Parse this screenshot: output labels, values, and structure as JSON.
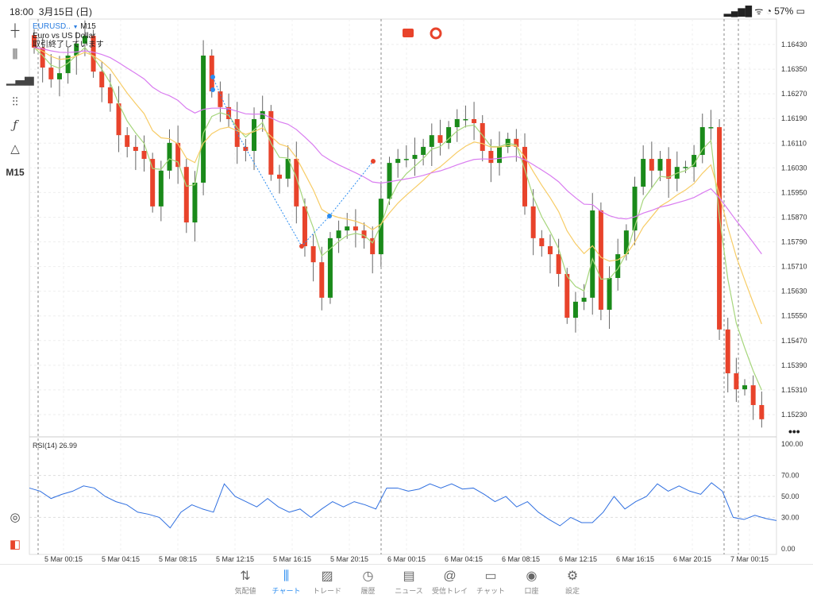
{
  "status_bar": {
    "time": "18:00",
    "date": "3月15日 (日)",
    "battery": "57%"
  },
  "chart_header": {
    "symbol": "EURUSD..",
    "timeframe": "M15",
    "description": "Euro vs US Dollar",
    "market_status": "取引終了しています"
  },
  "left_toolbar": {
    "items": [
      {
        "icon": "crosshair-icon"
      },
      {
        "icon": "candlestick-icon"
      },
      {
        "icon": "indicators-icon"
      },
      {
        "icon": "sliders-icon"
      },
      {
        "icon": "function-icon"
      },
      {
        "icon": "objects-icon"
      }
    ],
    "timeframe_label": "M15"
  },
  "colors": {
    "bull": "#1a8a1a",
    "bear": "#e8432b",
    "ma_fast": "#a6d67c",
    "ma_mid": "#f7cc66",
    "ma_slow": "#d97cf0",
    "rsi": "#2f6fe0",
    "accent": "#2a8cf0"
  },
  "price_axis": [
    "1.16430",
    "1.16350",
    "1.16270",
    "1.16190",
    "1.16110",
    "1.16030",
    "1.15950",
    "1.15870",
    "1.15790",
    "1.15710",
    "1.15630",
    "1.15550",
    "1.15470",
    "1.15390",
    "1.15310",
    "1.15230"
  ],
  "time_axis": [
    "5 Mar 00:15",
    "5 Mar 04:15",
    "5 Mar 08:15",
    "5 Mar 12:15",
    "5 Mar 16:15",
    "5 Mar 20:15",
    "6 Mar 00:15",
    "6 Mar 04:15",
    "6 Mar 08:15",
    "6 Mar 12:15",
    "6 Mar 16:15",
    "6 Mar 20:15",
    "7 Mar 00:15"
  ],
  "closes": [
    1.1642,
    1.16355,
    1.16317,
    1.16337,
    1.16394,
    1.16433,
    1.16458,
    1.16342,
    1.16291,
    1.16239,
    1.16136,
    1.16098,
    1.16085,
    1.16059,
    1.15905,
    1.16021,
    1.16111,
    1.16033,
    1.15853,
    1.15982,
    1.16394,
    1.16278,
    1.16227,
    1.16188,
    1.16098,
    1.16085,
    1.16188,
    1.16214,
    1.16008,
    1.15995,
    1.16059,
    1.15905,
    1.15776,
    1.15724,
    1.15609,
    1.15802,
    1.15827,
    1.1584,
    1.15827,
    1.15802,
    1.1575,
    1.1593,
    1.16046,
    1.16059,
    1.16059,
    1.16072,
    1.16098,
    1.16136,
    1.16111,
    1.16162,
    1.16188,
    1.16188,
    1.16175,
    1.16085,
    1.16046,
    1.16098,
    1.16124,
    1.16098,
    1.15905,
    1.15802,
    1.15776,
    1.1575,
    1.15686,
    1.15544,
    1.15596,
    1.15609,
    1.15892,
    1.1557,
    1.15673,
    1.1575,
    1.15827,
    1.15969,
    1.16059,
    1.16021,
    1.16059,
    1.15995,
    1.16033,
    1.16033,
    1.16072,
    1.16162,
    1.16162,
    1.15506,
    1.15364,
    1.15312,
    1.15325,
    1.15261,
    1.15215
  ],
  "rsi": {
    "label": "RSI(14) 26.99",
    "axis": [
      "100.00",
      "70.00",
      "50.00",
      "30.00",
      "0.00"
    ],
    "levels": [
      70,
      50,
      30
    ],
    "values": [
      58,
      55,
      48,
      52,
      55,
      60,
      58,
      50,
      45,
      42,
      35,
      33,
      30,
      20,
      35,
      42,
      38,
      35,
      62,
      50,
      45,
      40,
      48,
      40,
      35,
      38,
      30,
      38,
      45,
      40,
      45,
      42,
      38,
      58,
      58,
      55,
      57,
      62,
      58,
      62,
      57,
      58,
      52,
      45,
      50,
      40,
      45,
      35,
      28,
      22,
      30,
      25,
      25,
      35,
      50,
      38,
      45,
      50,
      62,
      55,
      60,
      55,
      52,
      63,
      55,
      30,
      28,
      32,
      29,
      27
    ]
  },
  "tab_bar": [
    {
      "label": "気配値",
      "icon": "quotes-icon",
      "glyph": "⇅"
    },
    {
      "label": "チャート",
      "icon": "chart-icon",
      "glyph": "⫼",
      "active": true
    },
    {
      "label": "トレード",
      "icon": "trade-icon",
      "glyph": "▨"
    },
    {
      "label": "履歴",
      "icon": "history-icon",
      "glyph": "◷"
    },
    {
      "label": "ニュース",
      "icon": "news-icon",
      "glyph": "▤"
    },
    {
      "label": "受信トレイ",
      "icon": "mailbox-icon",
      "glyph": "@"
    },
    {
      "label": "チャット",
      "icon": "chat-icon",
      "glyph": "▭"
    },
    {
      "label": "口座",
      "icon": "account-icon",
      "glyph": "◉"
    },
    {
      "label": "設定",
      "icon": "settings-icon",
      "glyph": "⚙"
    }
  ]
}
